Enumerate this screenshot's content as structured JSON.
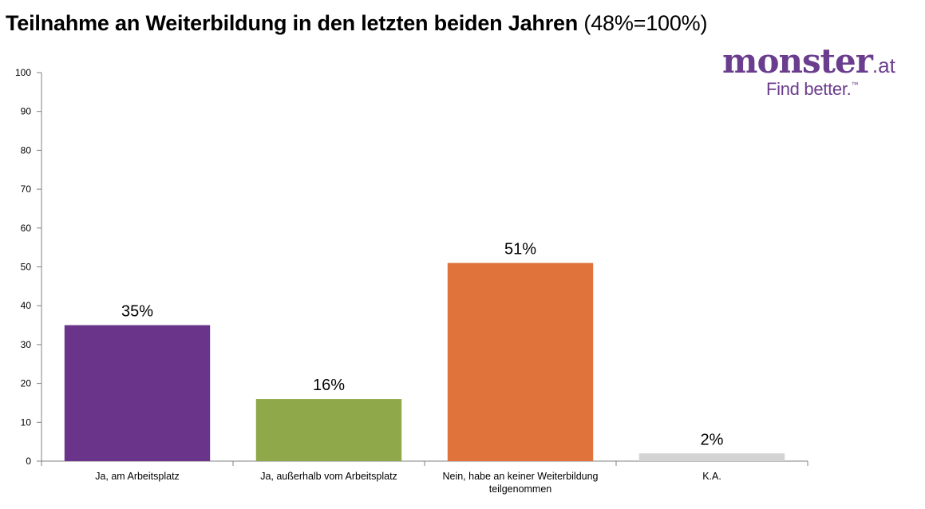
{
  "title": {
    "main": "Teilnahme an Weiterbildung in den letzten beiden Jahren",
    "sub": "(48%=100%)"
  },
  "logo": {
    "word": "monster",
    "tld": ".at",
    "tagline": "Find better.",
    "trademark": "™",
    "color": "#6b3d8e"
  },
  "chart_data": {
    "type": "bar",
    "title": "Teilnahme an Weiterbildung in den letzten beiden Jahren (48%=100%)",
    "categories": [
      [
        "Ja, am Arbeitsplatz"
      ],
      [
        "Ja, außerhalb vom Arbeitsplatz"
      ],
      [
        "Nein, habe an keiner Weiterbildung",
        "teilgenommen"
      ],
      [
        "K.A."
      ]
    ],
    "values": [
      35,
      16,
      51,
      2
    ],
    "data_labels": [
      "35%",
      "16%",
      "51%",
      "2%"
    ],
    "colors": [
      "#6a348a",
      "#8fa84a",
      "#df733b",
      "#d3d3d3"
    ],
    "ylim": [
      0,
      100
    ],
    "yticks": [
      0,
      10,
      20,
      30,
      40,
      50,
      60,
      70,
      80,
      90,
      100
    ],
    "xlabel": "",
    "ylabel": "",
    "grid": false,
    "legend": "none"
  }
}
